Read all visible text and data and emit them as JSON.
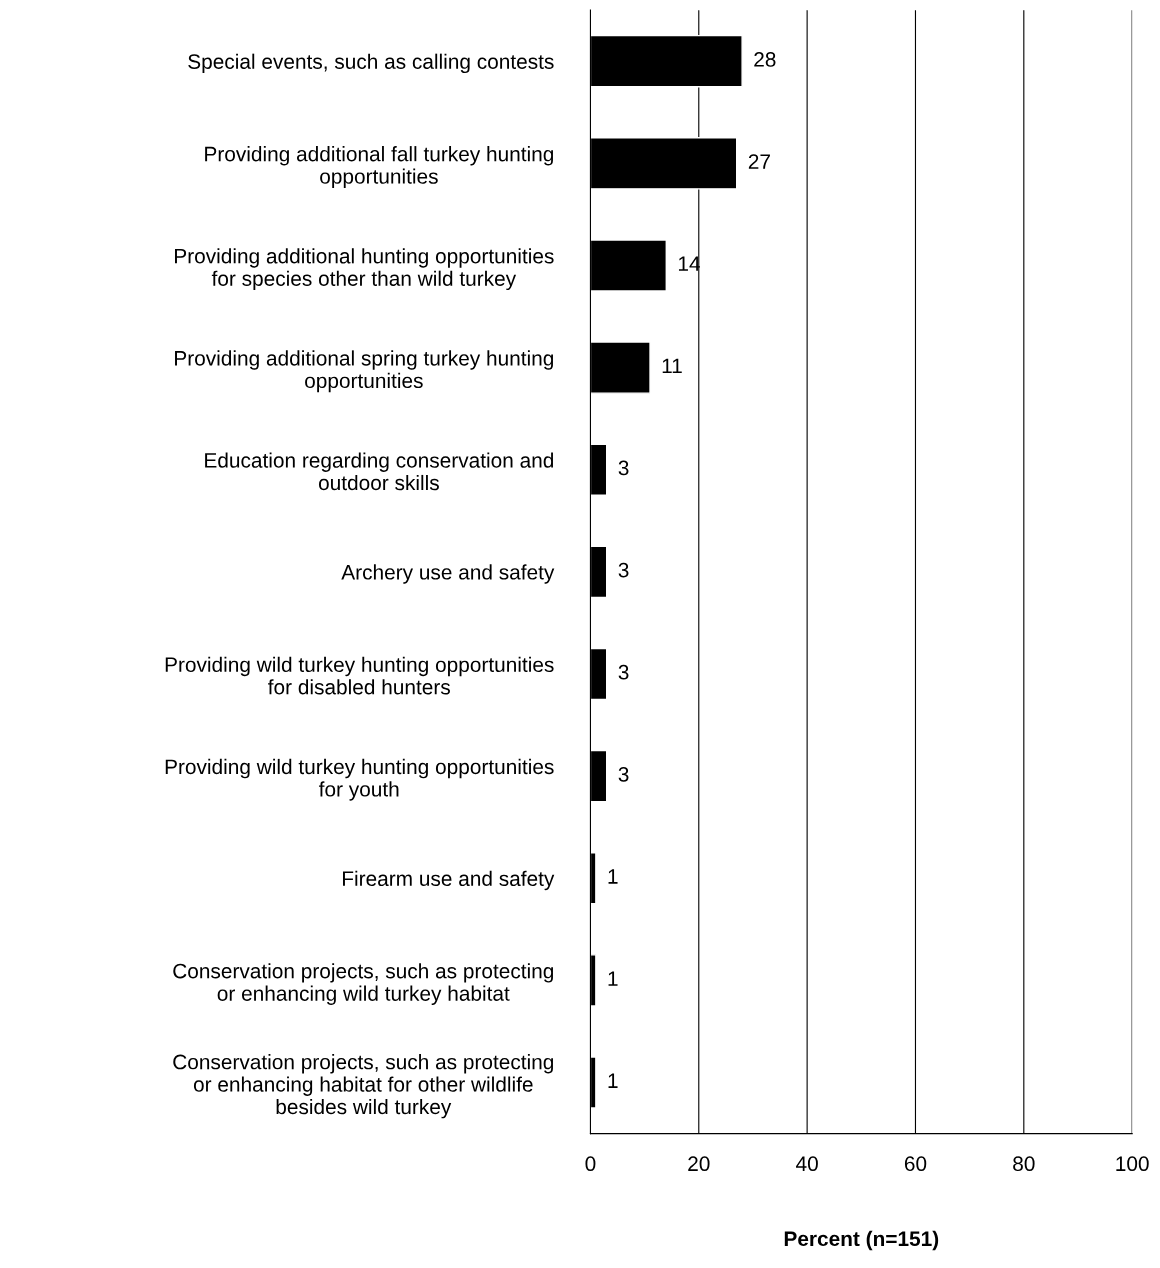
{
  "chart_data": {
    "type": "bar",
    "orientation": "horizontal",
    "xlabel": "Percent (n=151)",
    "categories": [
      "Special events, such as calling contests",
      "Providing additional fall turkey hunting\nopportunities",
      "Providing additional hunting opportunities\nfor species other than wild turkey",
      "Providing additional spring turkey hunting\nopportunities",
      "Education regarding conservation and\noutdoor skills",
      "Archery use and safety",
      "Providing wild turkey hunting opportunities\nfor disabled hunters",
      "Providing wild turkey hunting opportunities\nfor youth",
      "Firearm use and safety",
      "Conservation projects, such as protecting\nor enhancing wild turkey habitat",
      "Conservation projects, such as protecting\nor enhancing habitat for other wildlife\nbesides wild turkey"
    ],
    "values": [
      28,
      27,
      14,
      11,
      3,
      3,
      3,
      3,
      1,
      1,
      1
    ],
    "color": "#000000",
    "data_labels": true,
    "grid": "x",
    "xlim": [
      0,
      100
    ],
    "xticks": [
      0,
      20,
      40,
      60,
      80,
      100
    ]
  }
}
